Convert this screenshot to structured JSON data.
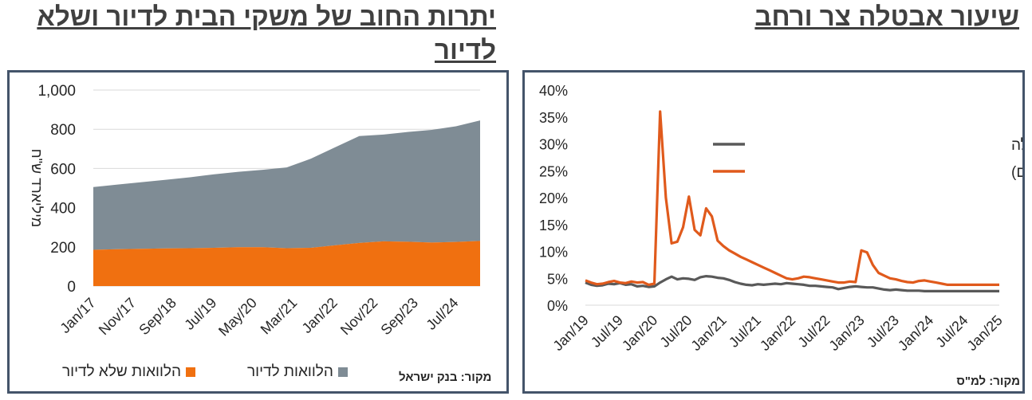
{
  "titles": {
    "left": "יתרות החוב של משקי הבית לדיור ושלא לדיור",
    "right": "שיעור אבטלה צר ורחב"
  },
  "chart_data": [
    {
      "type": "area",
      "stacked": true,
      "ylabel": "מיליארד ש\"ח",
      "yticks": [
        "0",
        "200",
        "400",
        "600",
        "800",
        "1,000"
      ],
      "ylim": [
        0,
        1000
      ],
      "xtick_labels": [
        "Jan/17",
        "Nov/17",
        "Sep/18",
        "Jul/19",
        "May/20",
        "Mar/21",
        "Jan/22",
        "Nov/22",
        "Sep/23",
        "Jul/24"
      ],
      "x": [
        "Jan/17",
        "Jul/17",
        "Jan/18",
        "Jul/18",
        "Jan/19",
        "Jul/19",
        "Jan/20",
        "Jul/20",
        "Jan/21",
        "Jul/21",
        "Jan/22",
        "Jul/22",
        "Jan/23",
        "Jul/23",
        "Jan/24",
        "Jul/24",
        "Jan/25"
      ],
      "series": [
        {
          "name": "הלוואות שלא לדיור",
          "color": "#f07010",
          "values": [
            185,
            188,
            190,
            192,
            193,
            195,
            198,
            198,
            193,
            195,
            208,
            220,
            228,
            226,
            222,
            225,
            230
          ]
        },
        {
          "name": "הלוואות לדיור",
          "color": "#7f8c95",
          "values": [
            320,
            330,
            340,
            350,
            362,
            375,
            385,
            395,
            412,
            455,
            500,
            545,
            545,
            560,
            575,
            590,
            615
          ]
        }
      ],
      "legend": [
        "הלוואות לדיור",
        "הלוואות שלא לדיור"
      ],
      "source": "מקור: בנק ישראל"
    },
    {
      "type": "line",
      "yticks": [
        "0%",
        "5%",
        "10%",
        "15%",
        "20%",
        "25%",
        "30%",
        "35%",
        "40%"
      ],
      "ylim": [
        0,
        40
      ],
      "xtick_labels": [
        "Jan/19",
        "Jul/19",
        "Jan/20",
        "Jul/20",
        "Jan/21",
        "Jul/21",
        "Jan/22",
        "Jul/22",
        "Jan/23",
        "Jul/23",
        "Jan/24",
        "Jul/24",
        "Jan/25"
      ],
      "series": [
        {
          "name": "שיעור אבטלה",
          "color": "#595959",
          "values": [
            4.2,
            3.8,
            3.6,
            3.7,
            4.0,
            3.9,
            4.1,
            3.8,
            3.9,
            3.5,
            3.6,
            3.4,
            3.5,
            4.2,
            4.8,
            5.3,
            4.8,
            5.0,
            4.9,
            4.7,
            5.2,
            5.4,
            5.3,
            5.1,
            5.0,
            4.7,
            4.3,
            4.0,
            3.8,
            3.7,
            3.9,
            3.8,
            3.9,
            4.0,
            3.9,
            4.1,
            4.0,
            3.9,
            3.8,
            3.6,
            3.6,
            3.5,
            3.4,
            3.3,
            3.0,
            3.2,
            3.4,
            3.5,
            3.4,
            3.3,
            3.3,
            3.1,
            2.9,
            2.8,
            2.9,
            2.8,
            2.7,
            2.7,
            2.7,
            2.6,
            2.6,
            2.6,
            2.6,
            2.6,
            2.6,
            2.6,
            2.6,
            2.6,
            2.6,
            2.6,
            2.6,
            2.6,
            2.6
          ]
        },
        {
          "name": "שיעור אבטלה רחב (כולל חל\"תים)",
          "color": "#e05a1c",
          "values": [
            4.6,
            4.2,
            3.9,
            4.0,
            4.3,
            4.5,
            4.2,
            4.1,
            4.4,
            4.2,
            4.3,
            3.8,
            4.0,
            36.0,
            20.0,
            11.5,
            11.8,
            14.5,
            20.2,
            14.0,
            13.0,
            18.0,
            16.5,
            12.0,
            11.0,
            10.2,
            9.6,
            9.0,
            8.5,
            8.0,
            7.5,
            7.0,
            6.5,
            6.0,
            5.5,
            5.0,
            4.8,
            5.0,
            5.3,
            5.2,
            5.0,
            4.8,
            4.6,
            4.4,
            4.2,
            4.2,
            4.4,
            4.3,
            10.2,
            9.8,
            7.5,
            6.0,
            5.5,
            5.0,
            4.8,
            4.5,
            4.3,
            4.2,
            4.5,
            4.6,
            4.4,
            4.2,
            4.0,
            3.8,
            3.8,
            3.8,
            3.8,
            3.8,
            3.8,
            3.8,
            3.8,
            3.8,
            3.8
          ]
        }
      ],
      "legend": [
        "שיעור אבטלה",
        "שיעור אבטלה רחב (כולל חל\"תים)"
      ],
      "source": "מקור: למ\"ס"
    }
  ]
}
